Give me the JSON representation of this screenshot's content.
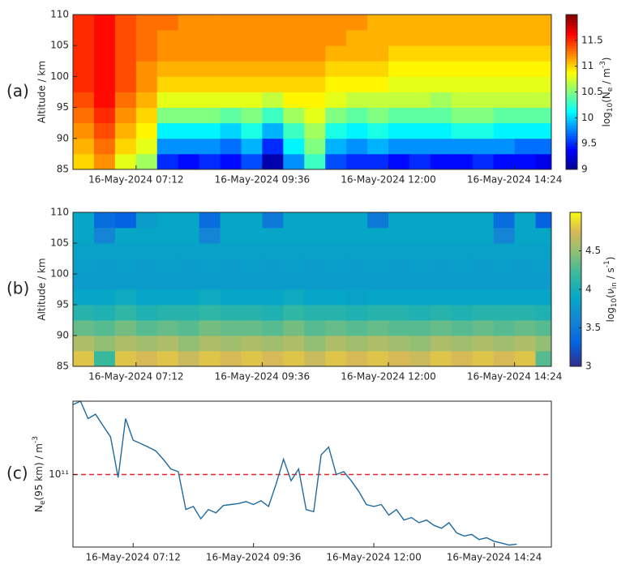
{
  "chart_data": [
    {
      "type": "heatmap",
      "panel_label": "(a)",
      "ylabel": "Altitude / km",
      "colorbar_label": [
        {
          "text": "log"
        },
        {
          "text": "10",
          "shift": "sub"
        },
        {
          "text": "(N"
        },
        {
          "text": "e",
          "shift": "sub"
        },
        {
          "text": " / m"
        },
        {
          "text": "-3",
          "shift": "sup"
        },
        {
          "text": ")"
        }
      ],
      "colormap": "jet",
      "x": [
        6.2,
        6.6,
        7.0,
        7.4,
        7.8,
        8.2,
        8.6,
        9.0,
        9.4,
        9.8,
        10.2,
        10.6,
        11.0,
        11.4,
        11.8,
        12.2,
        12.6,
        13.0,
        13.4,
        13.8,
        14.2,
        14.6,
        15.0
      ],
      "y": [
        86.25,
        88.75,
        91.25,
        93.75,
        96.25,
        98.75,
        101.25,
        103.75,
        106.25,
        108.75
      ],
      "z": [
        [
          11.0,
          11.2,
          10.8,
          10.6,
          9.5,
          9.4,
          9.5,
          9.4,
          9.6,
          9.1,
          9.8,
          10.3,
          9.6,
          9.5,
          9.5,
          9.4,
          9.5,
          9.4,
          9.4,
          9.5,
          9.4,
          9.4,
          9.3
        ],
        [
          11.1,
          11.3,
          11.0,
          10.8,
          9.8,
          9.8,
          9.8,
          9.7,
          9.9,
          9.5,
          10.1,
          10.5,
          9.9,
          9.8,
          9.9,
          9.8,
          9.8,
          9.8,
          9.8,
          9.8,
          9.8,
          9.7,
          9.7
        ],
        [
          11.2,
          11.4,
          11.1,
          10.9,
          10.1,
          10.1,
          10.1,
          10.0,
          10.2,
          9.9,
          10.3,
          10.6,
          10.2,
          10.1,
          10.2,
          10.1,
          10.1,
          10.1,
          10.2,
          10.2,
          10.1,
          10.1,
          10.1
        ],
        [
          11.3,
          11.5,
          11.2,
          11.0,
          10.5,
          10.5,
          10.5,
          10.4,
          10.5,
          10.3,
          10.6,
          10.8,
          10.5,
          10.4,
          10.5,
          10.4,
          10.4,
          10.4,
          10.5,
          10.5,
          10.4,
          10.4,
          10.4
        ],
        [
          11.4,
          11.6,
          11.3,
          11.1,
          10.8,
          10.8,
          10.8,
          10.8,
          10.8,
          10.7,
          10.9,
          10.9,
          10.8,
          10.7,
          10.7,
          10.7,
          10.7,
          10.6,
          10.7,
          10.7,
          10.7,
          10.7,
          10.7
        ],
        [
          11.5,
          11.6,
          11.4,
          11.2,
          11.0,
          11.0,
          11.0,
          11.0,
          11.0,
          11.0,
          11.0,
          11.0,
          10.9,
          10.9,
          10.9,
          10.8,
          10.8,
          10.8,
          10.8,
          10.8,
          10.8,
          10.8,
          10.8
        ],
        [
          11.5,
          11.6,
          11.4,
          11.2,
          11.1,
          11.1,
          11.1,
          11.1,
          11.1,
          11.1,
          11.1,
          11.1,
          11.0,
          11.0,
          11.0,
          10.9,
          10.9,
          10.9,
          10.9,
          10.9,
          10.9,
          10.9,
          10.9
        ],
        [
          11.5,
          11.6,
          11.4,
          11.3,
          11.2,
          11.2,
          11.2,
          11.2,
          11.2,
          11.2,
          11.2,
          11.2,
          11.1,
          11.1,
          11.1,
          11.0,
          11.0,
          11.0,
          11.0,
          11.0,
          11.0,
          11.0,
          11.0
        ],
        [
          11.5,
          11.6,
          11.4,
          11.3,
          11.2,
          11.2,
          11.2,
          11.2,
          11.2,
          11.2,
          11.2,
          11.2,
          11.2,
          11.1,
          11.1,
          11.1,
          11.1,
          11.1,
          11.1,
          11.1,
          11.1,
          11.1,
          11.1
        ],
        [
          11.5,
          11.6,
          11.4,
          11.3,
          11.3,
          11.2,
          11.2,
          11.2,
          11.2,
          11.2,
          11.2,
          11.2,
          11.2,
          11.2,
          11.1,
          11.1,
          11.1,
          11.1,
          11.1,
          11.1,
          11.1,
          11.1,
          11.1
        ]
      ],
      "xlim": [
        6.0,
        15.1
      ],
      "xticks": [
        {
          "value": 7.2,
          "label": "16-May-2024 07:12"
        },
        {
          "value": 9.6,
          "label": "16-May-2024 09:36"
        },
        {
          "value": 12.0,
          "label": "16-May-2024 12:00"
        },
        {
          "value": 14.4,
          "label": "16-May-2024 14:24"
        }
      ],
      "ylim": [
        85,
        110
      ],
      "yticks": [
        85,
        90,
        95,
        100,
        105,
        110
      ],
      "clim": [
        9,
        12
      ],
      "cticks": [
        9,
        9.5,
        10,
        10.5,
        11,
        11.5
      ]
    },
    {
      "type": "heatmap",
      "panel_label": "(b)",
      "ylabel": "Altitude / km",
      "colorbar_label": [
        {
          "text": "log"
        },
        {
          "text": "10",
          "shift": "sub"
        },
        {
          "text": "("
        },
        {
          "text": "ν",
          "style": "italic"
        },
        {
          "text": "in",
          "shift": "sub"
        },
        {
          "text": " / s"
        },
        {
          "text": "-1",
          "shift": "sup"
        },
        {
          "text": ")"
        }
      ],
      "colormap": "parula",
      "x": [
        6.2,
        6.6,
        7.0,
        7.4,
        7.8,
        8.2,
        8.6,
        9.0,
        9.4,
        9.8,
        10.2,
        10.6,
        11.0,
        11.4,
        11.8,
        12.2,
        12.6,
        13.0,
        13.4,
        13.8,
        14.2,
        14.6,
        15.0
      ],
      "y": [
        86.25,
        88.75,
        91.25,
        93.75,
        96.25,
        98.75,
        101.25,
        103.75,
        106.25,
        108.75
      ],
      "z": [
        [
          4.8,
          4.2,
          4.8,
          4.75,
          4.8,
          4.7,
          4.8,
          4.75,
          4.8,
          4.75,
          4.8,
          4.7,
          4.8,
          4.75,
          4.8,
          4.75,
          4.7,
          4.8,
          4.75,
          4.8,
          4.75,
          4.8,
          4.3
        ],
        [
          4.6,
          4.5,
          4.6,
          4.55,
          4.6,
          4.5,
          4.6,
          4.55,
          4.6,
          4.55,
          4.6,
          4.5,
          4.6,
          4.55,
          4.6,
          4.55,
          4.5,
          4.6,
          4.55,
          4.6,
          4.55,
          4.6,
          4.5
        ],
        [
          4.35,
          4.3,
          4.4,
          4.3,
          4.35,
          4.3,
          4.4,
          4.35,
          4.35,
          4.3,
          4.4,
          4.3,
          4.35,
          4.3,
          4.35,
          4.3,
          4.3,
          4.35,
          4.3,
          4.35,
          4.3,
          4.35,
          4.3
        ],
        [
          4.1,
          4.05,
          4.15,
          4.05,
          4.1,
          4.1,
          4.15,
          4.1,
          4.1,
          4.05,
          4.15,
          4.1,
          4.1,
          4.05,
          4.1,
          4.1,
          4.05,
          4.1,
          4.05,
          4.1,
          4.1,
          4.1,
          4.05
        ],
        [
          3.9,
          3.9,
          3.95,
          3.9,
          3.9,
          3.9,
          3.95,
          3.9,
          3.9,
          3.9,
          3.95,
          3.9,
          3.9,
          3.85,
          3.9,
          3.9,
          3.9,
          3.9,
          3.9,
          3.9,
          3.9,
          3.9,
          3.9
        ],
        [
          3.8,
          3.8,
          3.8,
          3.8,
          3.8,
          3.8,
          3.8,
          3.8,
          3.8,
          3.8,
          3.8,
          3.8,
          3.8,
          3.8,
          3.8,
          3.8,
          3.8,
          3.8,
          3.8,
          3.8,
          3.8,
          3.8,
          3.8
        ],
        [
          3.82,
          3.8,
          3.82,
          3.8,
          3.82,
          3.8,
          3.82,
          3.8,
          3.82,
          3.8,
          3.82,
          3.8,
          3.82,
          3.8,
          3.82,
          3.8,
          3.82,
          3.8,
          3.82,
          3.8,
          3.82,
          3.8,
          3.82
        ],
        [
          3.85,
          3.85,
          3.85,
          3.85,
          3.85,
          3.85,
          3.85,
          3.85,
          3.85,
          3.85,
          3.85,
          3.85,
          3.85,
          3.85,
          3.85,
          3.85,
          3.85,
          3.85,
          3.85,
          3.85,
          3.85,
          3.85,
          3.85
        ],
        [
          3.9,
          3.6,
          3.9,
          3.9,
          3.9,
          3.9,
          3.6,
          3.9,
          3.9,
          3.9,
          3.9,
          3.9,
          3.9,
          3.9,
          3.9,
          3.9,
          3.9,
          3.9,
          3.9,
          3.9,
          3.6,
          3.9,
          3.9
        ],
        [
          3.9,
          3.4,
          3.3,
          3.8,
          3.9,
          3.9,
          3.4,
          3.9,
          3.9,
          3.5,
          3.9,
          3.9,
          3.9,
          3.9,
          3.5,
          3.9,
          3.9,
          3.9,
          3.9,
          3.9,
          3.4,
          3.9,
          3.3
        ]
      ],
      "xlim": [
        6.0,
        15.1
      ],
      "xticks": [
        {
          "value": 7.2,
          "label": "16-May-2024 07:12"
        },
        {
          "value": 9.6,
          "label": "16-May-2024 09:36"
        },
        {
          "value": 12.0,
          "label": "16-May-2024 12:00"
        },
        {
          "value": 14.4,
          "label": "16-May-2024 14:24"
        }
      ],
      "ylim": [
        85,
        110
      ],
      "yticks": [
        85,
        90,
        95,
        100,
        105,
        110
      ],
      "clim": [
        3,
        5.0
      ],
      "cticks": [
        3,
        3.5,
        4,
        4.5
      ]
    },
    {
      "type": "line",
      "panel_label": "(c)",
      "ylabel": [
        {
          "text": "N"
        },
        {
          "text": "e",
          "shift": "sub"
        },
        {
          "text": "(95 km) / m"
        },
        {
          "text": "-3",
          "shift": "sup"
        }
      ],
      "x": [
        6.0,
        6.15,
        6.3,
        6.45,
        6.6,
        6.75,
        6.9,
        7.05,
        7.2,
        7.35,
        7.5,
        7.65,
        7.8,
        7.95,
        8.1,
        8.25,
        8.4,
        8.55,
        8.7,
        8.85,
        9.0,
        9.15,
        9.3,
        9.45,
        9.6,
        9.75,
        9.9,
        10.05,
        10.2,
        10.35,
        10.5,
        10.65,
        10.8,
        10.95,
        11.1,
        11.25,
        11.4,
        11.55,
        11.7,
        11.85,
        12.0,
        12.15,
        12.3,
        12.45,
        12.6,
        12.75,
        12.9,
        13.05,
        13.2,
        13.35,
        13.5,
        13.65,
        13.8,
        13.95,
        14.1,
        14.25,
        14.4,
        14.55,
        14.7,
        14.85
      ],
      "series": [
        {
          "color": "#1f6a9e",
          "values": [
            330000000000.0,
            350000000000.0,
            260000000000.0,
            280000000000.0,
            230000000000.0,
            190000000000.0,
            95000000000.0,
            260000000000.0,
            180000000000.0,
            170000000000.0,
            160000000000.0,
            150000000000.0,
            130000000000.0,
            110000000000.0,
            105000000000.0,
            55000000000.0,
            58000000000.0,
            47000000000.0,
            55000000000.0,
            52000000000.0,
            59000000000.0,
            60000000000.0,
            61000000000.0,
            63000000000.0,
            60000000000.0,
            64000000000.0,
            58000000000.0,
            85000000000.0,
            130000000000.0,
            90000000000.0,
            110000000000.0,
            55000000000.0,
            53000000000.0,
            140000000000.0,
            160000000000.0,
            100000000000.0,
            105000000000.0,
            90000000000.0,
            75000000000.0,
            60000000000.0,
            58000000000.0,
            60000000000.0,
            50000000000.0,
            55000000000.0,
            46000000000.0,
            48000000000.0,
            44000000000.0,
            46000000000.0,
            42000000000.0,
            40000000000.0,
            44000000000.0,
            37000000000.0,
            35000000000.0,
            36000000000.0,
            33000000000.0,
            34000000000.0,
            32000000000.0,
            31000000000.0,
            30000000000.0,
            30500000000.0
          ]
        }
      ],
      "log_y": true,
      "xlim": [
        6.0,
        15.54
      ],
      "xticks": [
        {
          "value": 7.2,
          "label": "16-May-2024 07:12"
        },
        {
          "value": 9.6,
          "label": "16-May-2024 09:36"
        },
        {
          "value": 12.0,
          "label": "16-May-2024 12:00"
        },
        {
          "value": 14.4,
          "label": "16-May-2024 14:24"
        }
      ],
      "ylim": [
        29000000000.0,
        350000000000.0
      ],
      "yticks": [
        {
          "value": 100000000000.0,
          "label": "10¹¹"
        }
      ],
      "reference_line": {
        "value": 100000000000.0,
        "color": "#e3262b",
        "dashed": true
      }
    }
  ]
}
